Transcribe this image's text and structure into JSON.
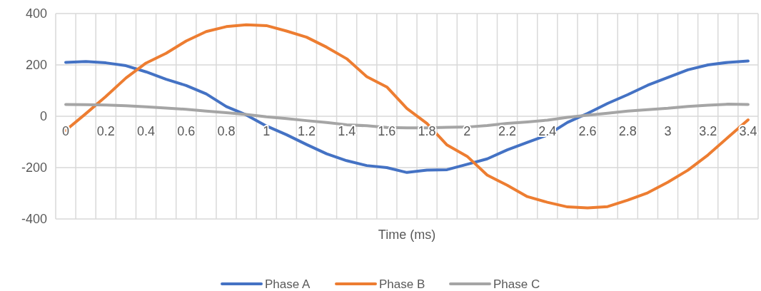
{
  "chart_data": {
    "type": "line",
    "xlabel": "Time (ms)",
    "categories": [
      "0",
      null,
      "0.2",
      null,
      "0.4",
      null,
      "0.6",
      null,
      "0.8",
      null,
      "1",
      null,
      "1.2",
      null,
      "1.4",
      null,
      "1.6",
      null,
      "1.8",
      null,
      "2",
      null,
      "2.2",
      null,
      "2.4",
      null,
      "2.6",
      null,
      "2.8",
      null,
      "3",
      null,
      "3.2",
      null,
      "3.4"
    ],
    "series": [
      {
        "name": "Phase A",
        "color": "#4472c4",
        "values": [
          210,
          213,
          208,
          197,
          173,
          144,
          120,
          87,
          38,
          5,
          -38,
          -72,
          -110,
          -146,
          -173,
          -192,
          -200,
          -219,
          -210,
          -208,
          -187,
          -166,
          -131,
          -102,
          -73,
          -24,
          11,
          50,
          84,
          121,
          151,
          181,
          200,
          210,
          215
        ]
      },
      {
        "name": "Phase B",
        "color": "#ed7d31",
        "values": [
          -55,
          10,
          77,
          149,
          207,
          245,
          293,
          330,
          349,
          356,
          353,
          332,
          308,
          269,
          224,
          154,
          114,
          30,
          -28,
          -112,
          -156,
          -229,
          -269,
          -313,
          -335,
          -353,
          -357,
          -352,
          -327,
          -298,
          -257,
          -210,
          -151,
          -82,
          -14
        ]
      },
      {
        "name": "Phase C",
        "color": "#a5a5a5",
        "values": [
          46,
          45,
          44,
          41,
          37,
          32,
          27,
          20,
          14,
          7,
          -2,
          -9,
          -17,
          -24,
          -33,
          -37,
          -44,
          -45,
          -45,
          -43,
          -42,
          -36,
          -28,
          -22,
          -15,
          -4,
          4,
          12,
          20,
          26,
          31,
          38,
          43,
          47,
          46
        ]
      }
    ],
    "ylim": [
      -400,
      400
    ],
    "yticks": [
      -400,
      -200,
      0,
      200,
      400
    ],
    "grid": true,
    "legend": "bottom"
  }
}
